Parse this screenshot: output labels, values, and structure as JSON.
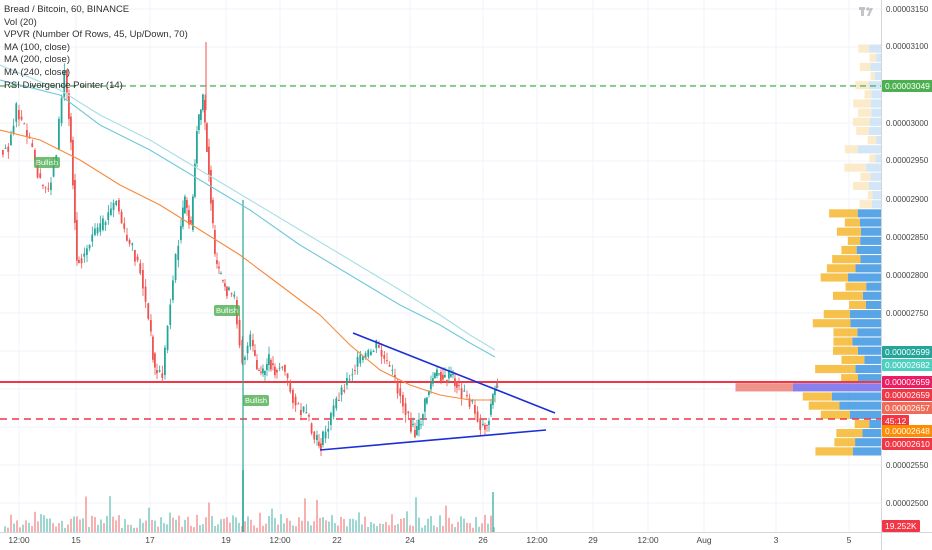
{
  "legend": {
    "line1": "Bread / Bitcoin, 60, BINANCE",
    "line2": "Vol (20)",
    "line3": "VPVR (Number Of Rows, 45, Up/Down, 70)",
    "line4": "MA (100, close)",
    "line5": "MA (200, close)",
    "line6": "MA (240, close)",
    "line7": "RSI Divergence Pointer (14)"
  },
  "price_axis": {
    "ticks": [
      "0.00003150",
      "0.00003100",
      "0.00003000",
      "0.00002950",
      "0.00002900",
      "0.00002850",
      "0.00002800",
      "0.00002750",
      "0.00002550",
      "0.00002500"
    ],
    "tags": [
      {
        "label": "0.00003049",
        "color": "#4caf50"
      },
      {
        "label": "0.00002699",
        "color": "#26a69a"
      },
      {
        "label": "0.00002682",
        "color": "#4dd0c0"
      },
      {
        "label": "0.00002659",
        "color": "#e91e63"
      },
      {
        "label": "0.00002659",
        "color": "#f23645"
      },
      {
        "label": "0.00002657",
        "color": "#ef6c5a"
      },
      {
        "label": "45:12",
        "color": "#f23645"
      },
      {
        "label": "0.00002648",
        "color": "#ff8c00"
      },
      {
        "label": "0.00002610",
        "color": "#f23645"
      },
      {
        "label": "19.252K",
        "color": "#f23645"
      }
    ]
  },
  "time_axis": {
    "labels": [
      "12:00",
      "15",
      "17",
      "19",
      "12:00",
      "22",
      "24",
      "26",
      "12:00",
      "29",
      "12:00",
      "Aug",
      "3",
      "5"
    ]
  },
  "signals": {
    "bullish": "Bullish"
  },
  "colors": {
    "up": "#26a69a",
    "down": "#ef5350",
    "resistance": "#f23645",
    "support_dashed": "#f23645",
    "green_dashed": "#4caf50",
    "trendline": "#1c2fd6",
    "ma100": "#f7893b",
    "ma200": "#6fc9d9",
    "ma240": "#a7dfe3"
  }
}
